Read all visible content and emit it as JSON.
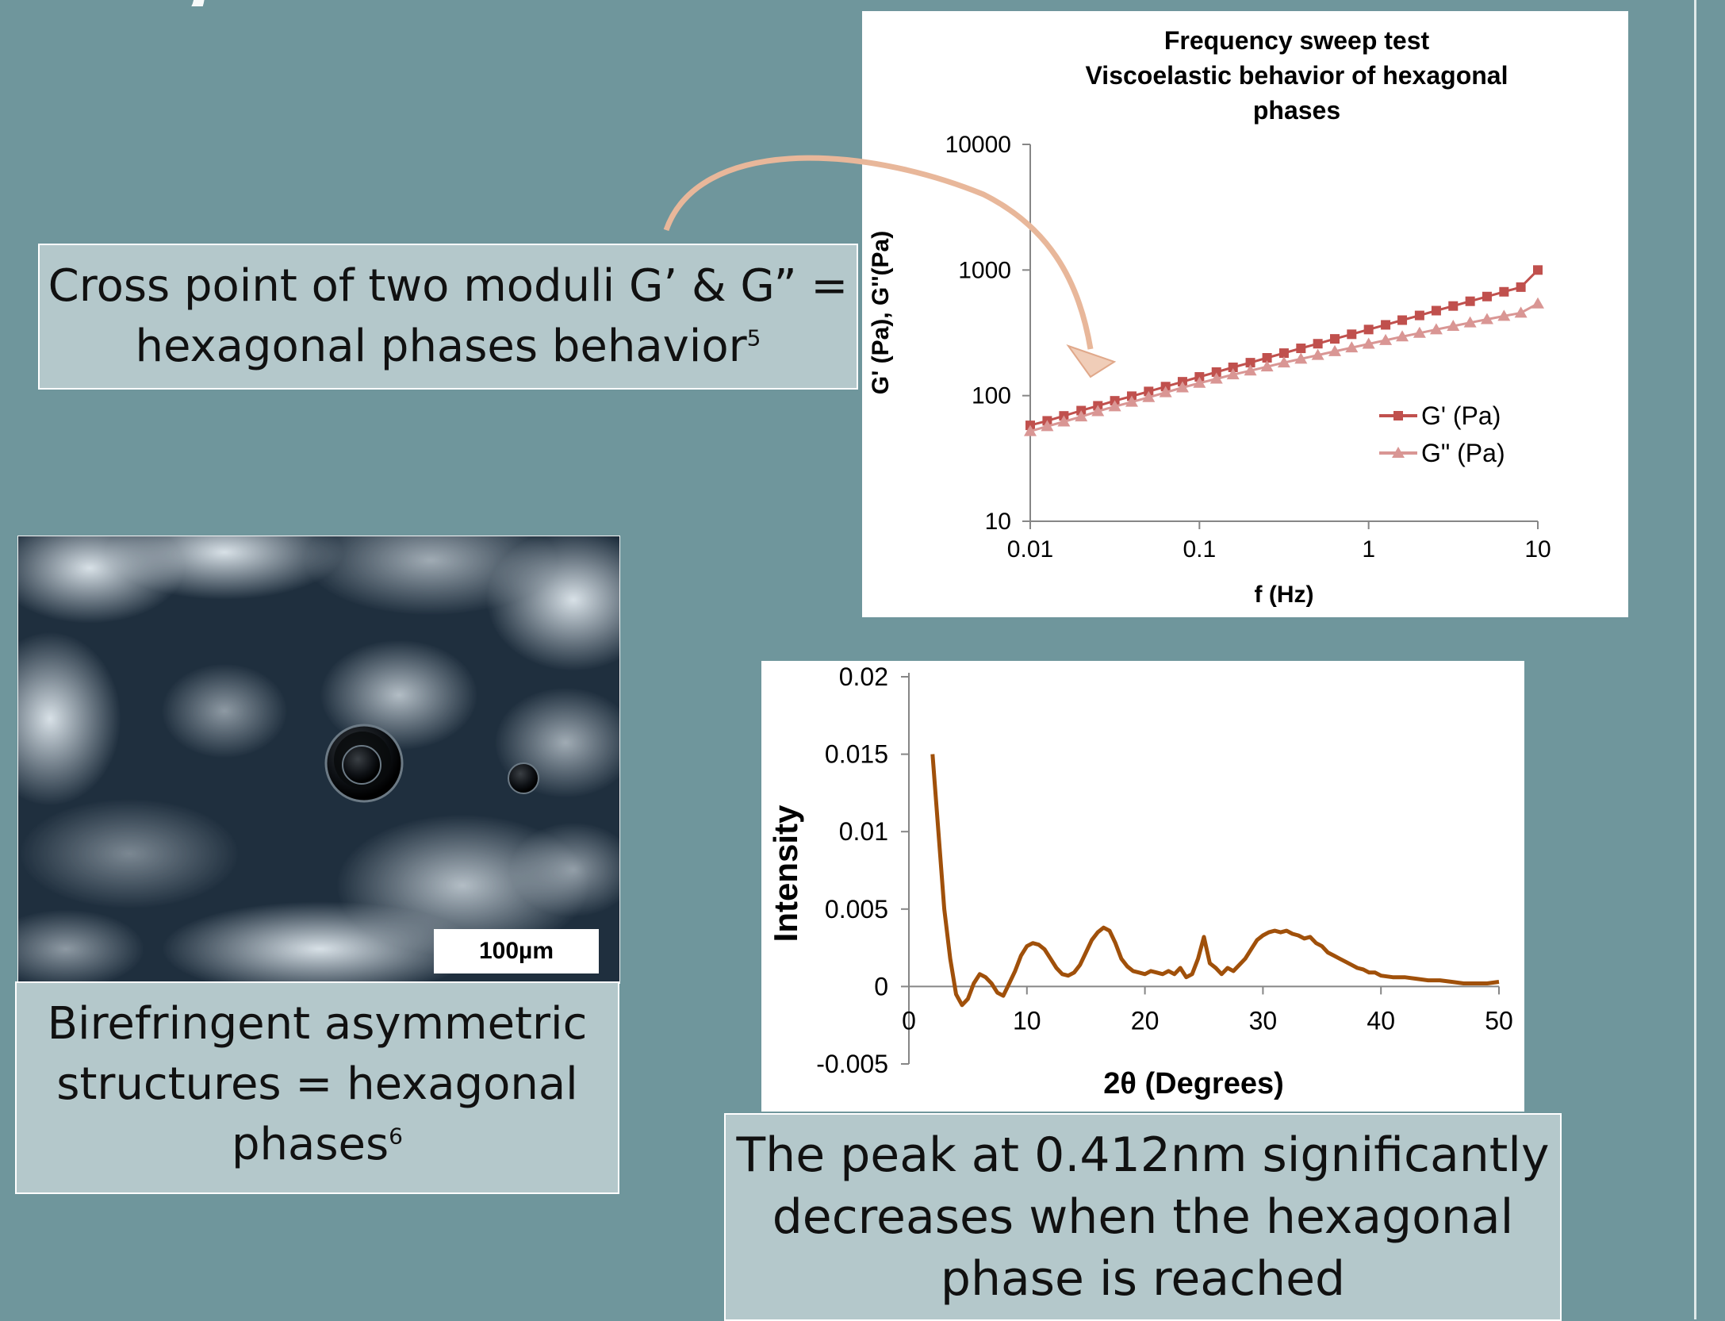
{
  "slide": {
    "title_fragment": "ing..."
  },
  "captions": {
    "rheology": {
      "line1": "Cross point of two moduli G’ & G” =",
      "line2": "hexagonal phases behavior",
      "ref": "5"
    },
    "microscopy": {
      "line1": "Birefringent asymmetric",
      "line2": "structures = hexagonal",
      "line3": "phases",
      "ref": "6"
    },
    "xrd": {
      "line1": "The peak at 0.412nm significantly",
      "line2": "decreases when the hexagonal",
      "line3": "phase is reached"
    }
  },
  "micrograph": {
    "scale_label": "100µm"
  },
  "colors": {
    "background": "#6f969c",
    "caption_fill": "#b4c8cb",
    "g_prime": "#c0504d",
    "g_double_prime": "#d99694",
    "xrd_line": "#a0500a",
    "arrow": "#e8b79a"
  },
  "chart_data": [
    {
      "type": "line",
      "title_lines": [
        "Frequency sweep test",
        "Viscoelastic behavior of hexagonal",
        "phases"
      ],
      "xlabel": "f (Hz)",
      "ylabel": "G' (Pa), G''(Pa)",
      "xscale": "log",
      "yscale": "log",
      "xlim": [
        0.01,
        10
      ],
      "ylim": [
        10,
        10000
      ],
      "xticks": [
        "0.01",
        "0.1",
        "1",
        "10"
      ],
      "yticks": [
        "10",
        "100",
        "1000",
        "10000"
      ],
      "legend_position": "right",
      "series": [
        {
          "name": "G' (Pa)",
          "marker": "square",
          "x": [
            0.01,
            0.0126,
            0.0158,
            0.02,
            0.0251,
            0.0316,
            0.0398,
            0.0501,
            0.0631,
            0.0794,
            0.1,
            0.126,
            0.158,
            0.2,
            0.251,
            0.316,
            0.398,
            0.501,
            0.631,
            0.794,
            1,
            1.26,
            1.58,
            2,
            2.51,
            3.16,
            3.98,
            5.01,
            6.31,
            7.94,
            10
          ],
          "y": [
            58,
            63,
            69,
            76,
            83,
            91,
            99,
            108,
            118,
            129,
            141,
            154,
            168,
            183,
            200,
            218,
            238,
            259,
            283,
            308,
            336,
            366,
            399,
            435,
            475,
            517,
            564,
            615,
            671,
            731,
            1000
          ]
        },
        {
          "name": "G\" (Pa)",
          "marker": "triangle",
          "x": [
            0.01,
            0.0126,
            0.0158,
            0.02,
            0.0251,
            0.0316,
            0.0398,
            0.0501,
            0.0631,
            0.0794,
            0.1,
            0.126,
            0.158,
            0.2,
            0.251,
            0.316,
            0.398,
            0.501,
            0.631,
            0.794,
            1,
            1.26,
            1.58,
            2,
            2.51,
            3.16,
            3.98,
            5.01,
            6.31,
            7.94,
            10
          ],
          "y": [
            52,
            57,
            62,
            68,
            75,
            82,
            89,
            97,
            106,
            116,
            126,
            136,
            147,
            158,
            170,
            183,
            196,
            210,
            225,
            241,
            258,
            276,
            295,
            315,
            336,
            358,
            381,
            405,
            430,
            456,
            540
          ]
        }
      ]
    },
    {
      "type": "line",
      "title": "",
      "xlabel": "2θ (Degrees)",
      "ylabel": "Intensity",
      "xlim": [
        0,
        50
      ],
      "ylim": [
        -0.005,
        0.02
      ],
      "xticks": [
        "0",
        "10",
        "20",
        "30",
        "40",
        "50"
      ],
      "yticks": [
        "-0.005",
        "0",
        "0.005",
        "0.01",
        "0.015",
        "0.02"
      ],
      "series": [
        {
          "name": "",
          "x": [
            2,
            2.5,
            3,
            3.5,
            4,
            4.5,
            5,
            5.5,
            6,
            6.5,
            7,
            7.5,
            8,
            8.5,
            9,
            9.5,
            10,
            10.5,
            11,
            11.5,
            12,
            12.5,
            13,
            13.5,
            14,
            14.5,
            15,
            15.5,
            16,
            16.5,
            17,
            17.5,
            18,
            18.5,
            19,
            19.5,
            20,
            20.5,
            21,
            21.5,
            22,
            22.5,
            23,
            23.5,
            24,
            24.5,
            25,
            25.5,
            26,
            26.5,
            27,
            27.5,
            28,
            28.5,
            29,
            29.5,
            30,
            30.5,
            31,
            31.5,
            32,
            32.5,
            33,
            33.5,
            34,
            34.5,
            35,
            35.5,
            36,
            36.5,
            37,
            37.5,
            38,
            38.5,
            39,
            39.5,
            40,
            41,
            42,
            43,
            44,
            45,
            46,
            47,
            48,
            49,
            50
          ],
          "y": [
            0.015,
            0.01,
            0.005,
            0.0018,
            -0.0005,
            -0.0012,
            -0.0008,
            0.0002,
            0.0008,
            0.0006,
            0.0002,
            -0.0004,
            -0.0006,
            0.0002,
            0.001,
            0.002,
            0.0026,
            0.0028,
            0.0027,
            0.0024,
            0.0018,
            0.0012,
            0.0008,
            0.0007,
            0.0009,
            0.0014,
            0.0022,
            0.003,
            0.0035,
            0.0038,
            0.0036,
            0.0028,
            0.0018,
            0.0013,
            0.001,
            0.0009,
            0.0008,
            0.001,
            0.0009,
            0.0008,
            0.001,
            0.0008,
            0.0012,
            0.0006,
            0.0008,
            0.0018,
            0.0032,
            0.0015,
            0.0012,
            0.0008,
            0.0012,
            0.001,
            0.0014,
            0.0018,
            0.0024,
            0.003,
            0.0033,
            0.0035,
            0.0036,
            0.0035,
            0.0036,
            0.0034,
            0.0033,
            0.0031,
            0.0032,
            0.0028,
            0.0026,
            0.0022,
            0.002,
            0.0018,
            0.0016,
            0.0014,
            0.0012,
            0.0011,
            0.0009,
            0.0009,
            0.0007,
            0.0006,
            0.0006,
            0.0005,
            0.0004,
            0.0004,
            0.0003,
            0.0002,
            0.0002,
            0.0002,
            0.0003
          ]
        }
      ]
    }
  ]
}
